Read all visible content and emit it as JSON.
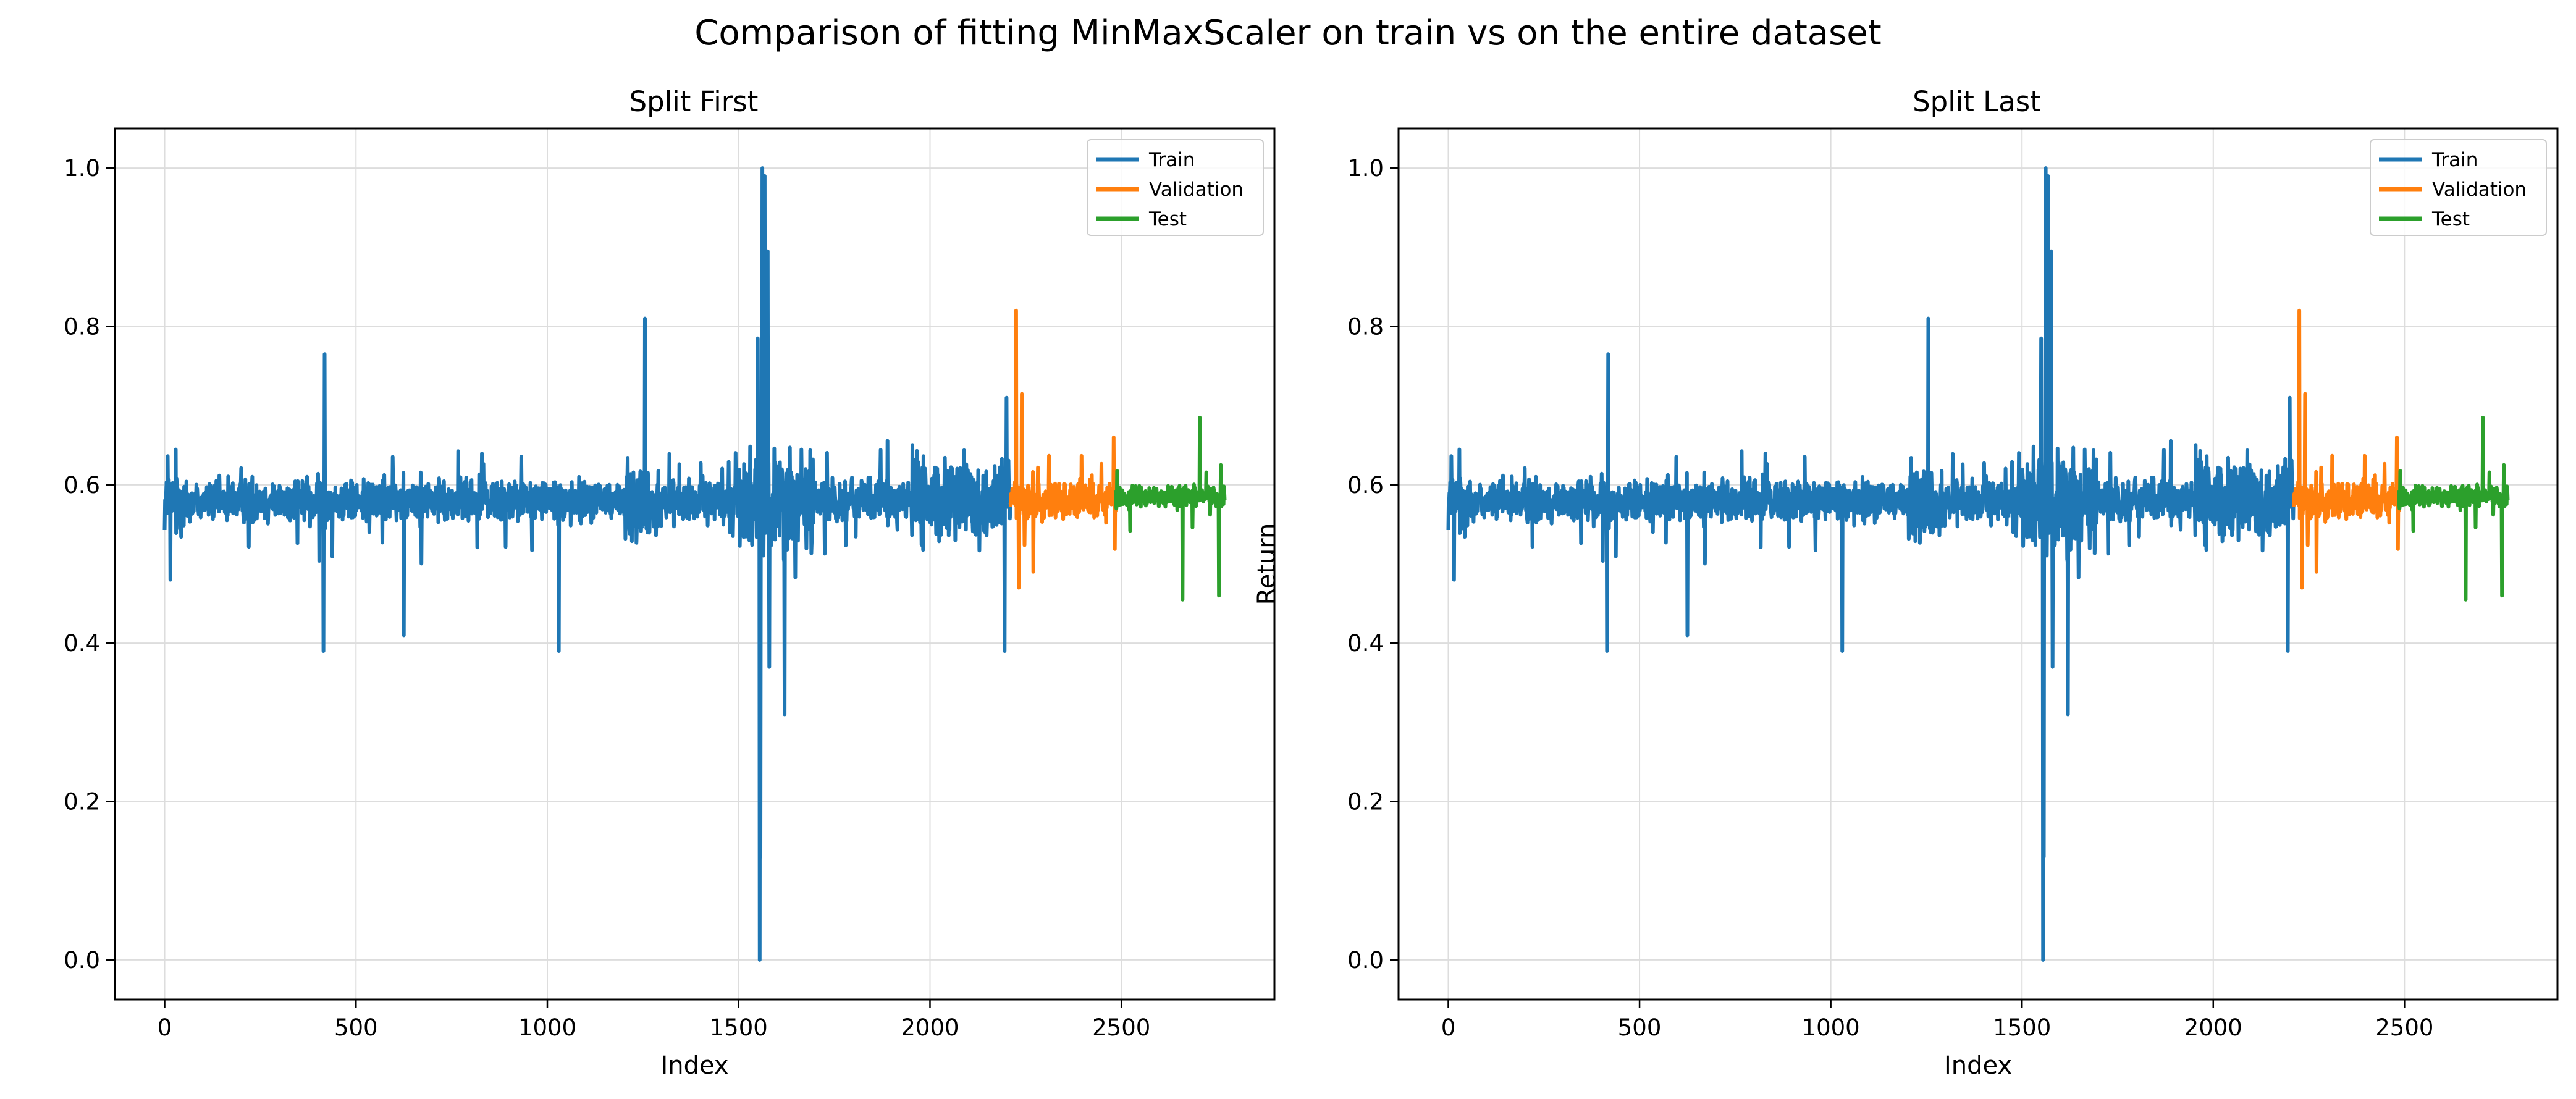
{
  "figure": {
    "suptitle": "Comparison of fitting MinMaxScaler on train vs on the entire dataset"
  },
  "colors": {
    "train": "#1f77b4",
    "validation": "#ff7f0e",
    "test": "#2ca02c",
    "grid": "#dddddd",
    "axes": "#000000"
  },
  "chart_data": [
    {
      "type": "line",
      "title": "Split First",
      "xlabel": "Index",
      "ylabel": "Return",
      "xlim": [
        -130,
        2900
      ],
      "ylim": [
        -0.05,
        1.05
      ],
      "xticks": [
        0,
        500,
        1000,
        1500,
        2000,
        2500
      ],
      "yticks": [
        0.0,
        0.2,
        0.4,
        0.6,
        0.8,
        1.0
      ],
      "xtick_labels": [
        "0",
        "500",
        "1000",
        "1500",
        "2000",
        "2500"
      ],
      "ytick_labels": [
        "0.0",
        "0.2",
        "0.4",
        "0.6",
        "0.8",
        "1.0"
      ],
      "grid": true,
      "legend": {
        "position": "top-right",
        "entries": [
          "Train",
          "Validation",
          "Test"
        ]
      },
      "series": [
        {
          "name": "Train",
          "color": "#1f77b4",
          "x_range": [
            0,
            2210
          ],
          "baseline": 0.58,
          "typical_range": [
            0.47,
            0.69
          ],
          "extremes": [
            {
              "x": 15,
              "y": 0.48
            },
            {
              "x": 415,
              "y": 0.39
            },
            {
              "x": 418,
              "y": 0.765
            },
            {
              "x": 625,
              "y": 0.41
            },
            {
              "x": 1030,
              "y": 0.39
            },
            {
              "x": 1255,
              "y": 0.81
            },
            {
              "x": 1550,
              "y": 0.785
            },
            {
              "x": 1555,
              "y": 0.0
            },
            {
              "x": 1557,
              "y": 0.13
            },
            {
              "x": 1562,
              "y": 1.0
            },
            {
              "x": 1568,
              "y": 0.99
            },
            {
              "x": 1576,
              "y": 0.895
            },
            {
              "x": 1580,
              "y": 0.37
            },
            {
              "x": 1620,
              "y": 0.31
            },
            {
              "x": 2195,
              "y": 0.39
            },
            {
              "x": 2200,
              "y": 0.71
            }
          ]
        },
        {
          "name": "Validation",
          "color": "#ff7f0e",
          "x_range": [
            2210,
            2485
          ],
          "baseline": 0.58,
          "typical_range": [
            0.48,
            0.68
          ],
          "extremes": [
            {
              "x": 2225,
              "y": 0.82
            },
            {
              "x": 2232,
              "y": 0.47
            },
            {
              "x": 2240,
              "y": 0.715
            },
            {
              "x": 2270,
              "y": 0.49
            },
            {
              "x": 2480,
              "y": 0.66
            }
          ]
        },
        {
          "name": "Test",
          "color": "#2ca02c",
          "x_range": [
            2485,
            2770
          ],
          "baseline": 0.585,
          "typical_range": [
            0.52,
            0.64
          ],
          "extremes": [
            {
              "x": 2660,
              "y": 0.455
            },
            {
              "x": 2705,
              "y": 0.685
            },
            {
              "x": 2755,
              "y": 0.46
            },
            {
              "x": 2760,
              "y": 0.625
            }
          ]
        }
      ]
    },
    {
      "type": "line",
      "title": "Split Last",
      "xlabel": "Index",
      "ylabel": "Return",
      "xlim": [
        -130,
        2900
      ],
      "ylim": [
        -0.05,
        1.05
      ],
      "xticks": [
        0,
        500,
        1000,
        1500,
        2000,
        2500
      ],
      "yticks": [
        0.0,
        0.2,
        0.4,
        0.6,
        0.8,
        1.0
      ],
      "xtick_labels": [
        "0",
        "500",
        "1000",
        "1500",
        "2000",
        "2500"
      ],
      "ytick_labels": [
        "0.0",
        "0.2",
        "0.4",
        "0.6",
        "0.8",
        "1.0"
      ],
      "grid": true,
      "legend": {
        "position": "top-right",
        "entries": [
          "Train",
          "Validation",
          "Test"
        ]
      },
      "series": [
        {
          "name": "Train",
          "color": "#1f77b4",
          "x_range": [
            0,
            2210
          ],
          "baseline": 0.58,
          "typical_range": [
            0.47,
            0.69
          ],
          "extremes": [
            {
              "x": 15,
              "y": 0.48
            },
            {
              "x": 415,
              "y": 0.39
            },
            {
              "x": 418,
              "y": 0.765
            },
            {
              "x": 625,
              "y": 0.41
            },
            {
              "x": 1030,
              "y": 0.39
            },
            {
              "x": 1255,
              "y": 0.81
            },
            {
              "x": 1550,
              "y": 0.785
            },
            {
              "x": 1555,
              "y": 0.0
            },
            {
              "x": 1557,
              "y": 0.13
            },
            {
              "x": 1562,
              "y": 1.0
            },
            {
              "x": 1568,
              "y": 0.99
            },
            {
              "x": 1576,
              "y": 0.895
            },
            {
              "x": 1580,
              "y": 0.37
            },
            {
              "x": 1620,
              "y": 0.31
            },
            {
              "x": 2195,
              "y": 0.39
            },
            {
              "x": 2200,
              "y": 0.71
            }
          ]
        },
        {
          "name": "Validation",
          "color": "#ff7f0e",
          "x_range": [
            2210,
            2485
          ],
          "baseline": 0.58,
          "typical_range": [
            0.48,
            0.68
          ],
          "extremes": [
            {
              "x": 2225,
              "y": 0.82
            },
            {
              "x": 2232,
              "y": 0.47
            },
            {
              "x": 2240,
              "y": 0.715
            },
            {
              "x": 2270,
              "y": 0.49
            },
            {
              "x": 2480,
              "y": 0.66
            }
          ]
        },
        {
          "name": "Test",
          "color": "#2ca02c",
          "x_range": [
            2485,
            2770
          ],
          "baseline": 0.585,
          "typical_range": [
            0.52,
            0.64
          ],
          "extremes": [
            {
              "x": 2660,
              "y": 0.455
            },
            {
              "x": 2705,
              "y": 0.685
            },
            {
              "x": 2755,
              "y": 0.46
            },
            {
              "x": 2760,
              "y": 0.625
            }
          ]
        }
      ]
    }
  ]
}
